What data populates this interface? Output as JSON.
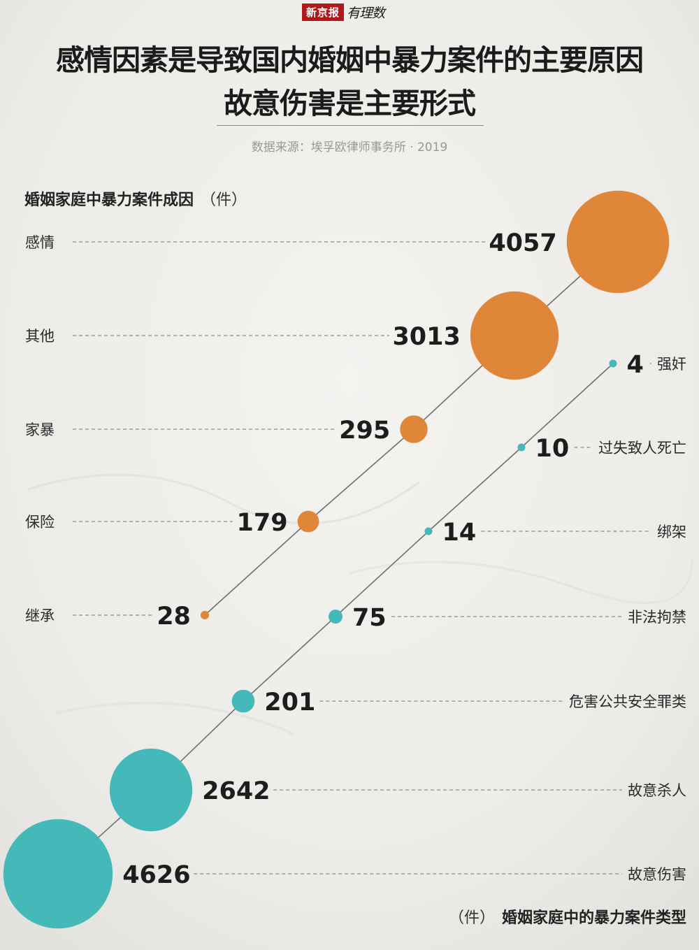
{
  "header": {
    "brand_box": "新京报",
    "brand_script": "有理数",
    "title_line1": "感情因素是导致国内婚姻中暴力案件的主要原因",
    "title_line2": "故意伤害是主要形式",
    "source": "数据来源：埃孚欧律师事务所 · 2019"
  },
  "colors": {
    "causes": "#df8638",
    "types": "#45b8b9",
    "connector": "#6f6f6f",
    "dash": "#8d8b88"
  },
  "chart_data": [
    {
      "type": "bubble",
      "title": "婚姻家庭中暴力案件成因",
      "unit": "（件）",
      "categories": [
        "感情",
        "其他",
        "家暴",
        "保险",
        "继承"
      ],
      "values": [
        4057,
        3013,
        295,
        179,
        28
      ]
    },
    {
      "type": "bubble",
      "title": "婚姻家庭中的暴力案件类型",
      "unit": "（件）",
      "categories": [
        "强奸",
        "过失致人死亡",
        "绑架",
        "非法拘禁",
        "危害公共安全罪类",
        "故意杀人",
        "故意伤害"
      ],
      "values": [
        4,
        10,
        14,
        75,
        201,
        2642,
        4626
      ]
    }
  ]
}
